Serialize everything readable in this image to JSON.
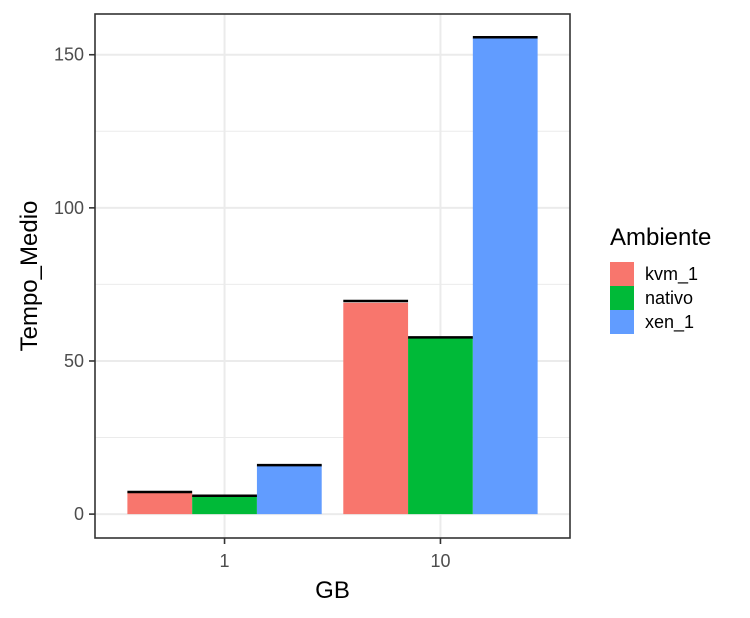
{
  "chart_data": {
    "type": "bar",
    "xlabel": "GB",
    "ylabel": "Tempo_Medio",
    "categories": [
      "1",
      "10"
    ],
    "series": [
      {
        "name": "kvm_1",
        "color": "#F8766D",
        "values": [
          7,
          69
        ]
      },
      {
        "name": "nativo",
        "color": "#00BA38",
        "values": [
          6,
          57.5
        ]
      },
      {
        "name": "xen_1",
        "color": "#619CFF",
        "values": [
          16,
          155.5
        ]
      }
    ],
    "error_caps": [
      [
        7.2,
        69.6
      ],
      [
        6.0,
        57.7
      ],
      [
        16.0,
        155.7
      ]
    ],
    "ylim": [
      -7.8,
      163.3
    ],
    "yticks": [
      0,
      50,
      100,
      150
    ],
    "grid": true,
    "legend": {
      "title": "Ambiente",
      "position": "right"
    }
  }
}
